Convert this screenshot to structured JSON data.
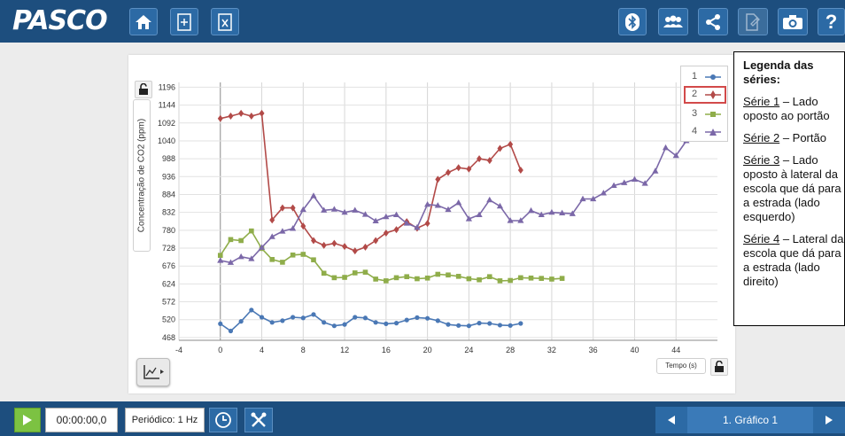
{
  "app": {
    "logo": "PASCO"
  },
  "toolbar": {
    "left_icons": [
      "home-icon",
      "new-page-icon",
      "calculator-icon"
    ],
    "right_icons": [
      "bluetooth-icon",
      "users-icon",
      "share-icon",
      "journal-icon",
      "camera-icon",
      "help-icon"
    ],
    "help_label": "?"
  },
  "chart": {
    "y_axis_label": "Concentração de CO2 (ppm)",
    "x_axis_label": "Tempo (s)",
    "legend": [
      {
        "num": "1",
        "color": "#4a78b5",
        "marker": "circle"
      },
      {
        "num": "2",
        "color": "#b24a48",
        "marker": "diamond",
        "selected": true
      },
      {
        "num": "3",
        "color": "#8fad4a",
        "marker": "square"
      },
      {
        "num": "4",
        "color": "#7b68a8",
        "marker": "triangle"
      }
    ]
  },
  "chart_data": {
    "type": "line",
    "xlabel": "Tempo (s)",
    "ylabel": "Concentração de CO2 (ppm)",
    "xlim": [
      -4,
      48
    ],
    "ylim": [
      460,
      1210
    ],
    "xticks": [
      -4,
      0,
      4,
      8,
      12,
      16,
      20,
      24,
      28,
      32,
      36,
      40,
      44
    ],
    "yticks": [
      468,
      520,
      572,
      624,
      676,
      728,
      780,
      832,
      884,
      936,
      988,
      1040,
      1092,
      1144,
      1196
    ],
    "grid": true,
    "series": [
      {
        "name": "1",
        "color": "#4a78b5",
        "x": [
          0,
          1,
          2,
          3,
          4,
          5,
          6,
          7,
          8,
          9,
          10,
          11,
          12,
          13,
          14,
          15,
          16,
          17,
          18,
          19,
          20,
          21,
          22,
          23,
          24,
          25,
          26,
          27,
          28,
          29
        ],
        "y": [
          508,
          487,
          515,
          548,
          527,
          512,
          517,
          527,
          525,
          535,
          512,
          502,
          506,
          527,
          525,
          512,
          508,
          510,
          519,
          526,
          524,
          517,
          506,
          503,
          502,
          510,
          509,
          504,
          503,
          509
        ]
      },
      {
        "name": "2",
        "color": "#b24a48",
        "x": [
          0,
          1,
          2,
          3,
          4,
          5,
          6,
          7,
          8,
          9,
          10,
          11,
          12,
          13,
          14,
          15,
          16,
          17,
          18,
          19,
          20,
          21,
          22,
          23,
          24,
          25,
          26,
          27,
          28,
          29
        ],
        "y": [
          1105,
          1112,
          1120,
          1112,
          1120,
          810,
          845,
          845,
          792,
          750,
          736,
          742,
          733,
          720,
          731,
          750,
          772,
          782,
          805,
          786,
          800,
          928,
          948,
          962,
          958,
          988,
          983,
          1018,
          1030,
          955
        ]
      },
      {
        "name": "3",
        "color": "#8fad4a",
        "x": [
          0,
          1,
          2,
          3,
          4,
          5,
          6,
          7,
          8,
          9,
          10,
          11,
          12,
          13,
          14,
          15,
          16,
          17,
          18,
          19,
          20,
          21,
          22,
          23,
          24,
          25,
          26,
          27,
          28,
          29,
          30,
          31,
          32,
          33
        ],
        "y": [
          707,
          753,
          750,
          778,
          727,
          695,
          687,
          708,
          710,
          694,
          655,
          642,
          643,
          656,
          658,
          638,
          633,
          642,
          645,
          639,
          641,
          652,
          650,
          646,
          639,
          636,
          645,
          633,
          634,
          642,
          641,
          640,
          638,
          640
        ]
      },
      {
        "name": "4",
        "color": "#7b68a8",
        "x": [
          0,
          1,
          2,
          3,
          4,
          5,
          6,
          7,
          8,
          9,
          10,
          11,
          12,
          13,
          14,
          15,
          16,
          17,
          18,
          19,
          20,
          21,
          22,
          23,
          24,
          25,
          26,
          27,
          28,
          29,
          30,
          31,
          32,
          33,
          34,
          35,
          36,
          37,
          38,
          39,
          40,
          41,
          42,
          43,
          44,
          45
        ],
        "y": [
          692,
          686,
          703,
          697,
          730,
          761,
          777,
          785,
          840,
          880,
          838,
          841,
          832,
          838,
          826,
          807,
          819,
          825,
          800,
          788,
          855,
          852,
          840,
          860,
          813,
          825,
          868,
          850,
          808,
          808,
          837,
          825,
          832,
          830,
          828,
          871,
          871,
          888,
          910,
          918,
          928,
          916,
          952,
          1020,
          997,
          1040
        ]
      }
    ]
  },
  "controls": {
    "x_label_lock_icon": "unlock-icon",
    "y_lock_icon": "unlock-icon",
    "tool_icon": "graph-tool-icon"
  },
  "notes": {
    "title": "Legenda das séries:",
    "items": [
      {
        "label": "Série 1",
        "text": " – Lado oposto ao portão"
      },
      {
        "label": "Série 2",
        "text": " – Portão"
      },
      {
        "label": "Série 3",
        "text": " – Lado oposto à lateral da escola que dá para a estrada (lado esquerdo)"
      },
      {
        "label": "Série 4",
        "text": " – Lateral da escola que dá para a estrada (lado direito)"
      }
    ]
  },
  "bottom": {
    "time": "00:00:00,0",
    "period": "Periódico: 1 Hz",
    "page_label": "1. Gráfico 1"
  }
}
